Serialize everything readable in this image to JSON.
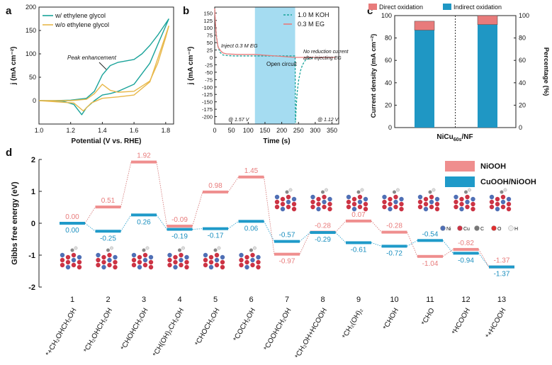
{
  "colors": {
    "teal": "#1aa39a",
    "gold": "#e8b84a",
    "salmon": "#e87b7b",
    "blue": "#1f97c4",
    "shade": "#8fd3ee",
    "energy_top": "#ef8e8e",
    "energy_bot": "#1f9ac9"
  },
  "chart_data": [
    {
      "panel": "a",
      "type": "line",
      "xlabel": "Potential (V vs. RHE)",
      "ylabel": "j (mA cm⁻²)",
      "xlim": [
        1.0,
        1.85
      ],
      "ylim": [
        -50,
        200
      ],
      "xticks": [
        "1.0",
        "1.2",
        "1.4",
        "1.6",
        "1.8"
      ],
      "yticks": [
        "0",
        "50",
        "100",
        "150",
        "200"
      ],
      "legend": [
        "w/ ethylene glycol",
        "w/o ethylene glycol"
      ],
      "annotation": "Peak enhancement",
      "series": [
        {
          "name": "w/ ethylene glycol forward",
          "x": [
            1.0,
            1.1,
            1.2,
            1.3,
            1.35,
            1.4,
            1.45,
            1.5,
            1.55,
            1.6,
            1.65,
            1.7,
            1.75,
            1.8,
            1.82
          ],
          "y": [
            0,
            0,
            1,
            5,
            20,
            55,
            75,
            82,
            85,
            88,
            100,
            118,
            140,
            165,
            175
          ]
        },
        {
          "name": "w/ ethylene glycol reverse",
          "x": [
            1.82,
            1.75,
            1.7,
            1.6,
            1.5,
            1.45,
            1.4,
            1.35,
            1.3,
            1.27,
            1.22,
            1.15,
            1.0
          ],
          "y": [
            175,
            120,
            80,
            35,
            20,
            15,
            12,
            0,
            -15,
            -30,
            -8,
            -1,
            0
          ]
        },
        {
          "name": "w/o ethylene glycol forward",
          "x": [
            1.0,
            1.2,
            1.3,
            1.35,
            1.4,
            1.45,
            1.5,
            1.6,
            1.7,
            1.75,
            1.8,
            1.82
          ],
          "y": [
            0,
            0,
            3,
            15,
            35,
            22,
            18,
            20,
            42,
            80,
            135,
            160
          ]
        },
        {
          "name": "w/o ethylene glycol reverse",
          "x": [
            1.82,
            1.75,
            1.7,
            1.6,
            1.5,
            1.4,
            1.33,
            1.28,
            1.22,
            1.0
          ],
          "y": [
            160,
            90,
            40,
            12,
            8,
            5,
            -5,
            -22,
            -5,
            0
          ]
        }
      ]
    },
    {
      "panel": "b",
      "type": "line",
      "xlabel": "Time (s)",
      "ylabel": "j (mA cm⁻²)",
      "xlim": [
        0,
        370
      ],
      "ylim": [
        -225,
        170
      ],
      "xticks": [
        "0",
        "50",
        "100",
        "150",
        "200",
        "250",
        "300",
        "350"
      ],
      "yticks": [
        "-200",
        "-175",
        "-150",
        "-125",
        "-100",
        "-75",
        "-50",
        "-25",
        "0",
        "25",
        "50",
        "75",
        "100",
        "125",
        "150"
      ],
      "legend": [
        "1.0 M KOH",
        "0.3 M EG"
      ],
      "shaded_region": [
        120,
        240
      ],
      "annotations": [
        "Inject 0.3 M EG",
        "Open circuit",
        "No reduction current",
        "after injecting EG",
        "@ 1.57 V",
        "@ 1.12 V"
      ],
      "series": [
        {
          "name": "1.0 M KOH",
          "x": [
            0,
            3,
            8,
            15,
            25,
            40,
            60,
            80,
            100,
            120,
            240,
            241,
            243,
            246,
            250,
            256,
            262,
            270,
            280,
            300,
            330,
            360
          ],
          "y": [
            160,
            100,
            45,
            18,
            8,
            6,
            5,
            5,
            5,
            5,
            5,
            -220,
            -170,
            -120,
            -80,
            -45,
            -25,
            -10,
            -4,
            -1,
            0,
            0
          ]
        },
        {
          "name": "0.3 M EG",
          "x": [
            0,
            2,
            5,
            10,
            18,
            25,
            35,
            50,
            70,
            100,
            120,
            240,
            250,
            280,
            320,
            360
          ],
          "y": [
            165,
            120,
            70,
            35,
            22,
            15,
            12,
            11,
            10,
            10,
            10,
            0,
            0,
            0,
            0,
            0
          ]
        }
      ]
    },
    {
      "panel": "c",
      "type": "bar",
      "stacked": true,
      "categories": [
        "NiCu60s/NF"
      ],
      "category_label": "NiCu",
      "category_sub": "60s",
      "category_suffix": "/NF",
      "ylabel_left": "Current density (mA cm⁻²)",
      "ylabel_right": "Percentage (%)",
      "ylim": [
        0,
        100
      ],
      "yticks": [
        "0",
        "20",
        "40",
        "60",
        "80",
        "100"
      ],
      "legend": [
        "Direct oxidation",
        "Indirect oxidation"
      ],
      "current_density": {
        "indirect": 87,
        "direct": 8
      },
      "percentage": {
        "indirect": 92,
        "direct": 8
      }
    },
    {
      "panel": "d",
      "type": "step",
      "ylabel": "Gibbs free energy (eV)",
      "ylim": [
        -2,
        2
      ],
      "yticks": [
        "-2",
        "-1",
        "0",
        "1",
        "2"
      ],
      "legend": [
        "NiOOH",
        "CuOOH/NiOOH"
      ],
      "steps": [
        "1",
        "2",
        "3",
        "4",
        "5",
        "6",
        "7",
        "8",
        "9",
        "10",
        "11",
        "12",
        "13"
      ],
      "intermediates": [
        "*+CH₂OHCH₂OH",
        "*CH₂OHCH₂OH",
        "*CHOHCH₂OH",
        "*CH(OH)₂CH₂OH",
        "*CHOCH₂OH",
        "*COCH₂OH",
        "*COOHCH₂OH",
        "*CH₂OH+HCOOH",
        "*CH₂(OH)₂",
        "*CHOH",
        "*CHO",
        "*HCOOH",
        "*+HCOOH"
      ],
      "series": [
        {
          "name": "NiOOH",
          "values": [
            0.0,
            0.51,
            1.92,
            -0.09,
            0.98,
            1.45,
            -0.97,
            -0.28,
            0.07,
            -0.28,
            -1.04,
            -0.82,
            -1.37
          ],
          "labels": [
            "0.00",
            "0.51",
            "1.92",
            "-0.09",
            "0.98",
            "1.45",
            "-0.97",
            "-0.28",
            "0.07",
            "-0.28",
            "-1.04",
            "-0.82",
            "-1.37"
          ]
        },
        {
          "name": "CuOOH/NiOOH",
          "values": [
            0.0,
            -0.25,
            0.26,
            -0.19,
            -0.17,
            0.06,
            -0.57,
            -0.29,
            -0.61,
            -0.72,
            -0.54,
            -0.94,
            -1.37
          ],
          "labels": [
            "0.00",
            "-0.25",
            "0.26",
            "-0.19",
            "-0.17",
            "0.06",
            "-0.57",
            "-0.29",
            "-0.61",
            "-0.72",
            "-0.54",
            "-0.94",
            "-1.37"
          ]
        }
      ],
      "element_key": [
        "Ni",
        "Cu",
        "C",
        "O",
        "H"
      ]
    }
  ]
}
